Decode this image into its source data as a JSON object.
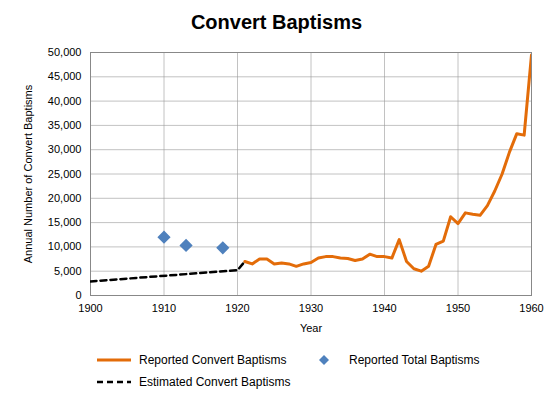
{
  "chart_data": {
    "type": "line",
    "title": "Convert Baptisms",
    "x_label": "Year",
    "y_label": "Annual Number of Convert Baptisms",
    "xlim": [
      1900,
      1960
    ],
    "xticks": [
      1900,
      1910,
      1920,
      1930,
      1940,
      1950,
      1960
    ],
    "ylim": [
      0,
      50000
    ],
    "yticks": [
      0,
      {
        "value": 5000,
        "label": "5,000"
      },
      {
        "value": 10000,
        "label": "10,000"
      },
      {
        "value": 15000,
        "label": "15,000"
      },
      {
        "value": 20000,
        "label": "20,000"
      },
      {
        "value": 25000,
        "label": "25,000"
      },
      {
        "value": 30000,
        "label": "30,000"
      },
      {
        "value": 35000,
        "label": "35,000"
      },
      {
        "value": 40000,
        "label": "40,000"
      },
      {
        "value": 45000,
        "label": "45,000"
      },
      {
        "value": 50000,
        "label": "50,000"
      }
    ],
    "grid": true,
    "legend": "bottom",
    "series": [
      {
        "name": "Reported Convert Baptisms",
        "type": "line",
        "color": "#e36c09",
        "line_style": "solid",
        "x": [
          1921,
          1922,
          1923,
          1924,
          1925,
          1926,
          1927,
          1928,
          1929,
          1930,
          1931,
          1932,
          1933,
          1934,
          1935,
          1936,
          1937,
          1938,
          1939,
          1940,
          1941,
          1942,
          1943,
          1944,
          1945,
          1946,
          1947,
          1948,
          1949,
          1950,
          1951,
          1952,
          1953,
          1954,
          1955,
          1956,
          1957,
          1958,
          1959,
          1960
        ],
        "values": [
          7000,
          6500,
          7500,
          7500,
          6500,
          6700,
          6500,
          6000,
          6500,
          6800,
          7700,
          8000,
          8000,
          7700,
          7600,
          7200,
          7500,
          8500,
          8000,
          8000,
          7700,
          11500,
          7000,
          5500,
          5000,
          6000,
          10500,
          11200,
          16200,
          14800,
          17000,
          16700,
          16500,
          18500,
          21500,
          25000,
          29500,
          33300,
          33000,
          49500
        ]
      },
      {
        "name": "Reported Total Baptisms",
        "type": "scatter",
        "color": "#4f81bd",
        "marker": "diamond",
        "x": [
          1910,
          1913,
          1918
        ],
        "values": [
          12000,
          10300,
          9800
        ]
      },
      {
        "name": "Estimated Convert Baptisms",
        "type": "line",
        "color": "#000000",
        "line_style": "dashed",
        "x": [
          1900,
          1920,
          1921
        ],
        "values": [
          2900,
          5200,
          7000
        ]
      }
    ]
  }
}
